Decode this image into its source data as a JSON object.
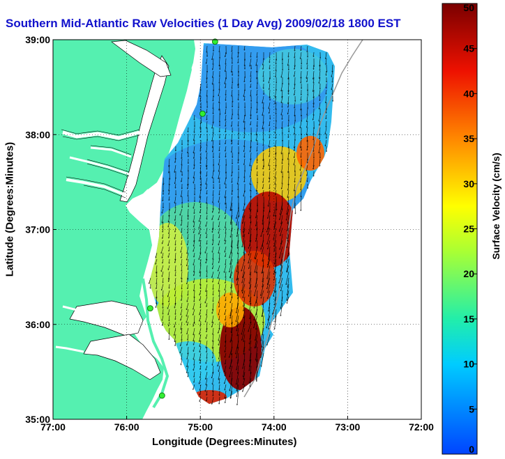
{
  "title": "Southern Mid-Atlantic Raw Velocities (1 Day Avg) 2009/02/18 1800 EST",
  "map": {
    "xlabel": "Longitude (Degrees:Minutes)",
    "ylabel": "Latitude (Degrees:Minutes)",
    "lon_range": [
      -77,
      -72
    ],
    "lat_range": [
      35,
      39
    ],
    "lon_ticks": [
      {
        "value": -77,
        "label": "77:00"
      },
      {
        "value": -76,
        "label": "76:00"
      },
      {
        "value": -75,
        "label": "75:00"
      },
      {
        "value": -74,
        "label": "74:00"
      },
      {
        "value": -73,
        "label": "73:00"
      },
      {
        "value": -72,
        "label": "72:00"
      }
    ],
    "lat_ticks": [
      {
        "value": 35,
        "label": "35:00"
      },
      {
        "value": 36,
        "label": "36:00"
      },
      {
        "value": 37,
        "label": "37:00"
      },
      {
        "value": 38,
        "label": "38:00"
      },
      {
        "value": 39,
        "label": "39:00"
      }
    ],
    "grid": "dotted",
    "colors": {
      "land": "#55f0b0",
      "water": "#ffffff",
      "coastline": "#000000",
      "shelf_edge": "#999999",
      "station": "#33ee33"
    }
  },
  "colorbar": {
    "label": "Surface Velocity (cm/s)",
    "min": 0,
    "max": 50,
    "ticks": [
      {
        "value": 0,
        "label": "0"
      },
      {
        "value": 5,
        "label": "5"
      },
      {
        "value": 10,
        "label": "10"
      },
      {
        "value": 15,
        "label": "15"
      },
      {
        "value": 20,
        "label": "20"
      },
      {
        "value": 25,
        "label": "25"
      },
      {
        "value": 30,
        "label": "30"
      },
      {
        "value": 35,
        "label": "35"
      },
      {
        "value": 40,
        "label": "40"
      },
      {
        "value": 45,
        "label": "45"
      },
      {
        "value": 50,
        "label": "50"
      }
    ]
  },
  "stations": [
    {
      "lon": -74.8,
      "lat": 38.98
    },
    {
      "lon": -74.97,
      "lat": 38.22
    },
    {
      "lon": -75.68,
      "lat": 36.17
    },
    {
      "lon": -75.52,
      "lat": 35.25
    }
  ]
}
